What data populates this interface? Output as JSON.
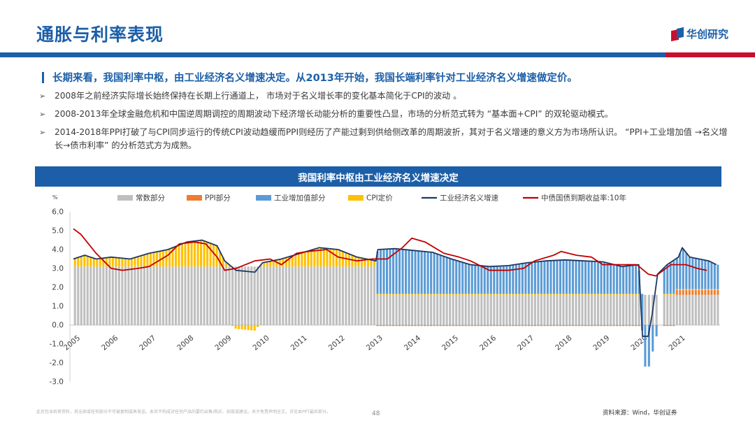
{
  "header": {
    "title": "通胀与利率表现",
    "brand": "华创研究",
    "brand_color": "#1c5fa8",
    "accent_color": "#c8102e"
  },
  "lead": "长期来看，我国利率中枢，由工业经济名义增速决定。从2013年开始，我国长端利率针对工业经济名义增速做定价。",
  "bullets": [
    "2008年之前经济实际增长始终保持在长期上行通道上， 市场对于名义增长率的变化基本简化于CPI的波动 。",
    "2008-2013年全球金融危机和中国逆周期调控的周期波动下经济增长动能分析的重要性凸显，市场的分析范式转为 “基本面+CPI” 的双轮驱动模式。",
    "2014-2018年PPI打破了与CPI同步运行的传统CPI波动趋缓而PPI则经历了产能过剩到供给侧改革的周期波折，其对于名义增速的意义方为市场所认识。 “PPI+工业增加值 →名义增长→债市利率” 的分析范式方为成熟。"
  ],
  "chart_banner": "我国利率中枢由工业经济名义增速决定",
  "chart_data": {
    "type": "bar",
    "unit_label": "%",
    "ylim": [
      -3,
      6
    ],
    "yticks": [
      "6.0",
      "5.0",
      "4.0",
      "3.0",
      "2.0",
      "1.0",
      "0.0",
      "-1.0",
      "-2.0",
      "-3.0"
    ],
    "x_years": [
      "2005",
      "2006",
      "2007",
      "2008",
      "2009",
      "2010",
      "2011",
      "2012",
      "2013",
      "2014",
      "2015",
      "2016",
      "2017",
      "2018",
      "2019",
      "2020",
      "2021"
    ],
    "series": [
      {
        "name": "常数部分",
        "color": "#bfbfbf"
      },
      {
        "name": "PPI部分",
        "color": "#ed7d31"
      },
      {
        "name": "工业增加值部分",
        "color": "#5b9bd5"
      },
      {
        "name": "CPI定价",
        "color": "#ffc000"
      },
      {
        "name": "工业经济名义增速",
        "color": "#1f3864"
      },
      {
        "name": "中债国债到期收益率:10年",
        "color": "#c00000"
      }
    ],
    "bars": {
      "constant_before_2013": 3.1,
      "constant_from_2013": 1.6,
      "cpi_from_2013": 0.05,
      "ppi_from_2013": -0.05,
      "ppi_from_2021": 0.25
    },
    "nominal_growth_keypoints": [
      [
        2005.0,
        3.5
      ],
      [
        2005.3,
        3.7
      ],
      [
        2005.6,
        3.5
      ],
      [
        2006.0,
        3.6
      ],
      [
        2006.5,
        3.5
      ],
      [
        2007.0,
        3.8
      ],
      [
        2007.5,
        4.0
      ],
      [
        2008.0,
        4.4
      ],
      [
        2008.4,
        4.5
      ],
      [
        2008.8,
        4.2
      ],
      [
        2009.0,
        3.4
      ],
      [
        2009.3,
        2.9
      ],
      [
        2009.8,
        2.8
      ],
      [
        2010.0,
        3.3
      ],
      [
        2010.5,
        3.5
      ],
      [
        2011.0,
        3.8
      ],
      [
        2011.5,
        4.1
      ],
      [
        2012.0,
        4.0
      ],
      [
        2012.5,
        3.6
      ],
      [
        2013.0,
        3.4
      ],
      [
        2013.05,
        4.0
      ],
      [
        2013.5,
        4.05
      ],
      [
        2014.0,
        3.95
      ],
      [
        2014.5,
        3.85
      ],
      [
        2015.0,
        3.5
      ],
      [
        2015.5,
        3.2
      ],
      [
        2016.0,
        3.1
      ],
      [
        2016.5,
        3.15
      ],
      [
        2017.0,
        3.3
      ],
      [
        2017.5,
        3.4
      ],
      [
        2018.0,
        3.45
      ],
      [
        2018.5,
        3.4
      ],
      [
        2019.0,
        3.35
      ],
      [
        2019.5,
        3.1
      ],
      [
        2019.95,
        3.2
      ],
      [
        2020.05,
        -0.6
      ],
      [
        2020.2,
        -0.6
      ],
      [
        2020.3,
        0.5
      ],
      [
        2020.45,
        2.7
      ],
      [
        2020.7,
        3.2
      ],
      [
        2021.0,
        3.6
      ],
      [
        2021.1,
        4.1
      ],
      [
        2021.3,
        3.6
      ],
      [
        2021.8,
        3.4
      ],
      [
        2022.0,
        3.2
      ]
    ],
    "yield_keypoints": [
      [
        2005.0,
        5.1
      ],
      [
        2005.2,
        4.8
      ],
      [
        2005.6,
        3.8
      ],
      [
        2006.0,
        3.0
      ],
      [
        2006.3,
        2.9
      ],
      [
        2006.7,
        3.0
      ],
      [
        2007.0,
        3.1
      ],
      [
        2007.5,
        3.7
      ],
      [
        2007.8,
        4.3
      ],
      [
        2008.2,
        4.4
      ],
      [
        2008.5,
        4.3
      ],
      [
        2008.8,
        3.6
      ],
      [
        2009.0,
        2.9
      ],
      [
        2009.3,
        3.0
      ],
      [
        2009.8,
        3.4
      ],
      [
        2010.2,
        3.5
      ],
      [
        2010.5,
        3.2
      ],
      [
        2010.9,
        3.8
      ],
      [
        2011.2,
        3.9
      ],
      [
        2011.7,
        4.0
      ],
      [
        2012.0,
        3.6
      ],
      [
        2012.5,
        3.4
      ],
      [
        2012.9,
        3.5
      ],
      [
        2013.3,
        3.5
      ],
      [
        2013.7,
        4.1
      ],
      [
        2013.95,
        4.6
      ],
      [
        2014.3,
        4.4
      ],
      [
        2014.8,
        3.8
      ],
      [
        2015.2,
        3.6
      ],
      [
        2015.5,
        3.4
      ],
      [
        2016.0,
        2.9
      ],
      [
        2016.5,
        2.9
      ],
      [
        2016.9,
        3.0
      ],
      [
        2017.2,
        3.4
      ],
      [
        2017.7,
        3.7
      ],
      [
        2017.9,
        3.9
      ],
      [
        2018.3,
        3.7
      ],
      [
        2018.7,
        3.6
      ],
      [
        2019.0,
        3.2
      ],
      [
        2019.5,
        3.2
      ],
      [
        2019.9,
        3.2
      ],
      [
        2020.2,
        2.7
      ],
      [
        2020.4,
        2.6
      ],
      [
        2020.8,
        3.2
      ],
      [
        2021.2,
        3.2
      ],
      [
        2021.5,
        3.0
      ],
      [
        2021.75,
        2.9
      ]
    ]
  },
  "footer_note": "此页包含机密资料，其全部或任何部分不可被复制或再发送。本页不构成对任何产品的要约出售/购买、招揽或建议。关于免责声明全文，详见本PPT最后部分。",
  "page_number": "48",
  "source": "资料来源：Wind，华创证券"
}
